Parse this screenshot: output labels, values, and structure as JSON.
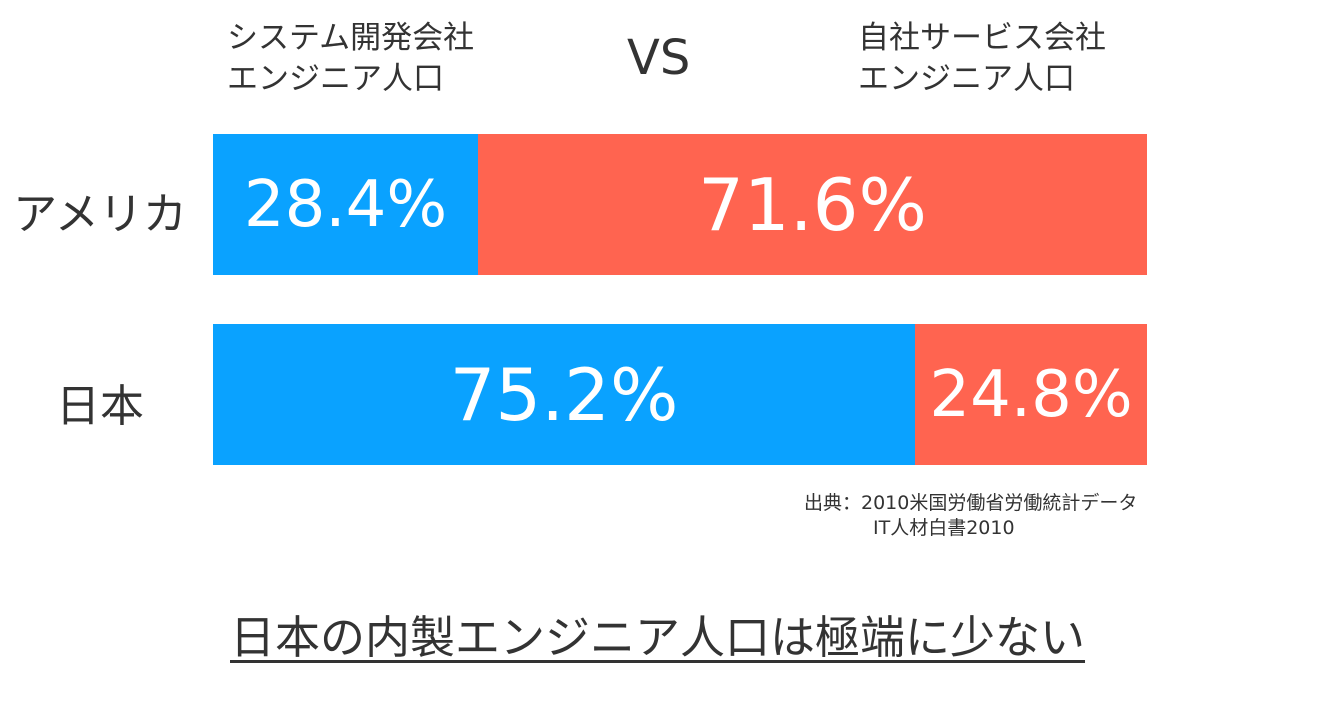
{
  "legend": {
    "left_line1": "システム開発会社",
    "left_line2": "エンジニア人口",
    "vs": "VS",
    "right_line1": "自社サービス会社",
    "right_line2": "エンジニア人口"
  },
  "source": {
    "line1": "出典：2010米国労働省労働統計データ",
    "line2": "IT人材白書2010"
  },
  "headline": "日本の内製エンジニア人口は極端に少ない",
  "colors": {
    "system_dev": "#0aa2ff",
    "in_house_service": "#ff6450",
    "text": "#333333"
  },
  "chart_data": {
    "type": "bar",
    "orientation": "horizontal",
    "stacked": "100%",
    "categories": [
      "アメリカ",
      "日本"
    ],
    "series": [
      {
        "name": "システム開発会社 エンジニア人口",
        "values": [
          28.4,
          75.2
        ],
        "labels": [
          "28.4%",
          "75.2%"
        ],
        "color": "#0aa2ff"
      },
      {
        "name": "自社サービス会社 エンジニア人口",
        "values": [
          71.6,
          24.8
        ],
        "labels": [
          "71.6%",
          "24.8%"
        ],
        "color": "#ff6450"
      }
    ],
    "ylim": [
      0,
      100
    ],
    "grid": false,
    "legend_position": "top"
  }
}
